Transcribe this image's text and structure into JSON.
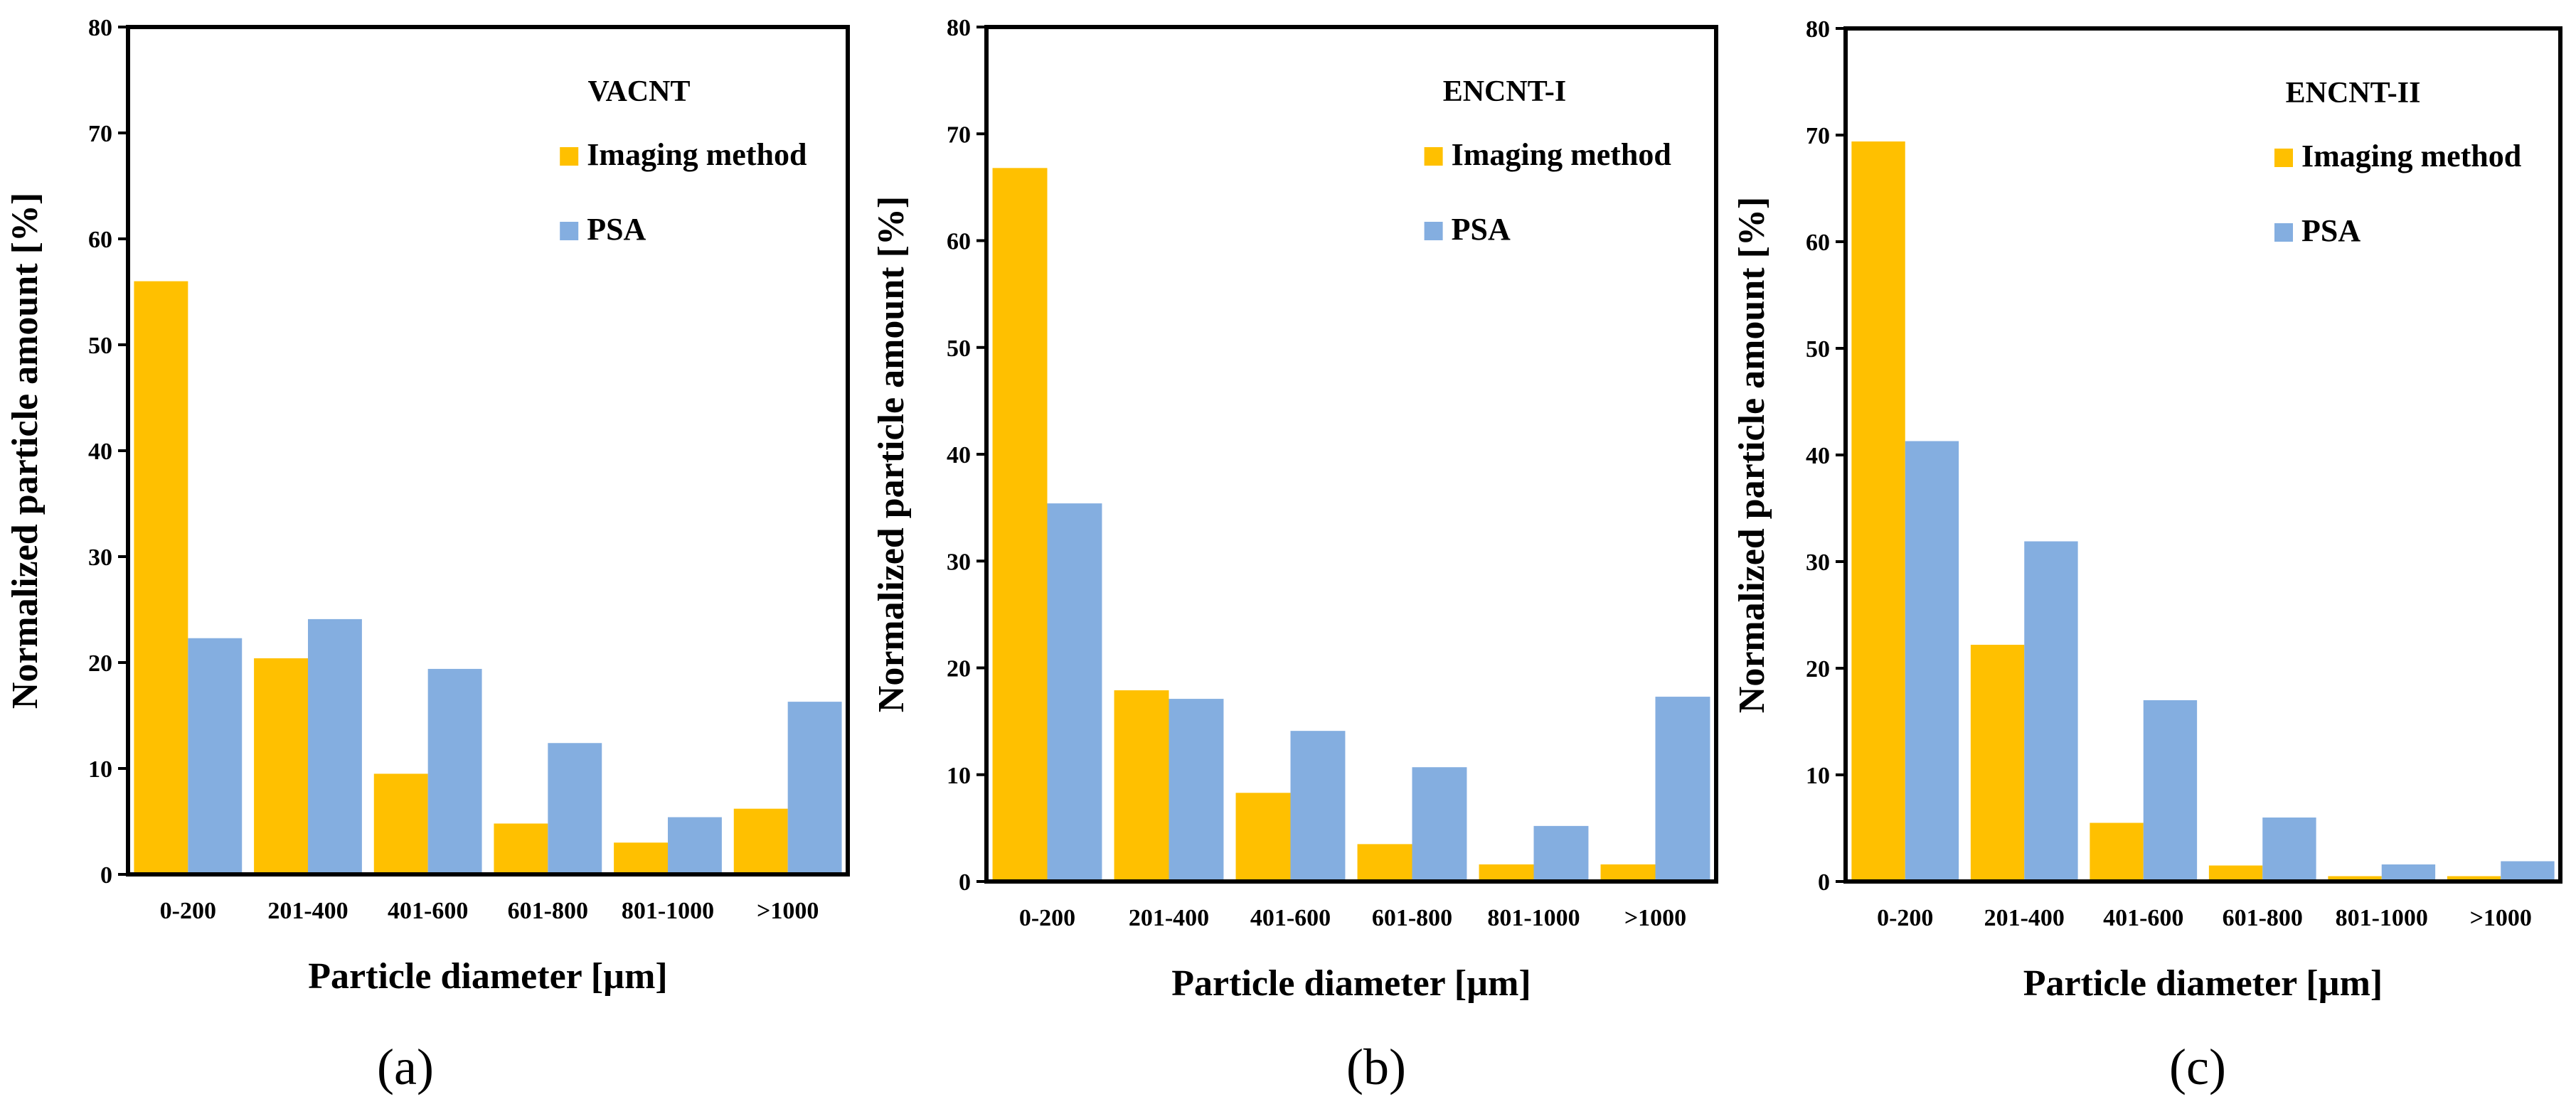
{
  "colors": {
    "imaging": "#FFC000",
    "psa": "#84AEE0",
    "axis": "#000000",
    "background": "#FFFFFF"
  },
  "chart_data": [
    {
      "type": "bar",
      "title": "VACNT",
      "panel_label": "(a)",
      "xlabel": "Particle diameter [µm]",
      "ylabel": "Normalized particle amount [%]",
      "ylim": [
        0,
        80
      ],
      "yticks": [
        0,
        10,
        20,
        30,
        40,
        50,
        60,
        70,
        80
      ],
      "categories": [
        "0-200",
        "201-400",
        "401-600",
        "601-800",
        "801-1000",
        ">1000"
      ],
      "legend_position": "top-right",
      "series": [
        {
          "name": "Imaging method",
          "color_key": "imaging",
          "values": [
            56.0,
            20.4,
            9.5,
            4.8,
            3.0,
            6.2
          ]
        },
        {
          "name": "PSA",
          "color_key": "psa",
          "values": [
            22.3,
            24.1,
            19.4,
            12.4,
            5.4,
            16.3
          ]
        }
      ]
    },
    {
      "type": "bar",
      "title": "ENCNT-I",
      "panel_label": "(b)",
      "xlabel": "Particle diameter [µm]",
      "ylabel": "Normalized particle amount [%]",
      "ylim": [
        0,
        80
      ],
      "yticks": [
        0,
        10,
        20,
        30,
        40,
        50,
        60,
        70,
        80
      ],
      "categories": [
        "0-200",
        "201-400",
        "401-600",
        "601-800",
        "801-1000",
        ">1000"
      ],
      "legend_position": "top-right",
      "series": [
        {
          "name": "Imaging method",
          "color_key": "imaging",
          "values": [
            66.8,
            17.9,
            8.3,
            3.5,
            1.6,
            1.6
          ]
        },
        {
          "name": "PSA",
          "color_key": "psa",
          "values": [
            35.4,
            17.1,
            14.1,
            10.7,
            5.2,
            17.3
          ]
        }
      ]
    },
    {
      "type": "bar",
      "title": "ENCNT-II",
      "panel_label": "(c)",
      "xlabel": "Particle diameter [µm]",
      "ylabel": "Normalized particle amount [%]",
      "ylim": [
        0,
        80
      ],
      "yticks": [
        0,
        10,
        20,
        30,
        40,
        50,
        60,
        70,
        80
      ],
      "categories": [
        "0-200",
        "201-400",
        "401-600",
        "601-800",
        "801-1000",
        ">1000"
      ],
      "legend_position": "top-right",
      "series": [
        {
          "name": "Imaging method",
          "color_key": "imaging",
          "values": [
            69.4,
            22.2,
            5.5,
            1.5,
            0.5,
            0.5
          ]
        },
        {
          "name": "PSA",
          "color_key": "psa",
          "values": [
            41.3,
            31.9,
            17.0,
            6.0,
            1.6,
            1.9
          ]
        }
      ]
    }
  ]
}
